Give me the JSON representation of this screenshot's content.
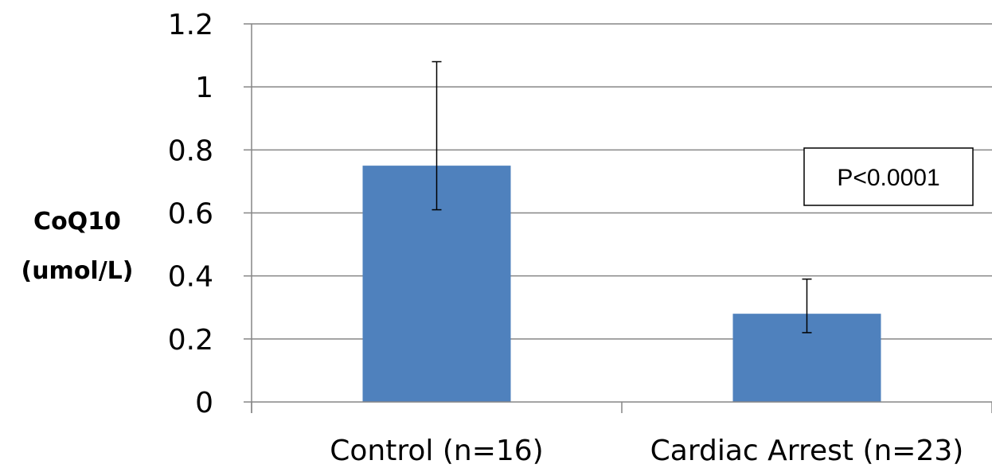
{
  "chart_data": {
    "type": "bar",
    "title": "",
    "xlabel": "",
    "ylabel_lines": [
      "CoQ10",
      "(umol/L)"
    ],
    "categories": [
      "Control (n=16)",
      "Cardiac Arrest (n=23)"
    ],
    "values": [
      0.75,
      0.28
    ],
    "error_bars": [
      {
        "low": 0.61,
        "high": 1.08
      },
      {
        "low": 0.22,
        "high": 0.39
      }
    ],
    "ylim": [
      0,
      1.2
    ],
    "yticks": [
      0,
      0.2,
      0.4,
      0.6,
      0.8,
      1,
      1.2
    ],
    "ytick_labels": [
      "0",
      "0.2",
      "0.4",
      "0.6",
      "0.8",
      "1",
      "1.2"
    ],
    "grid": true,
    "legend": "none",
    "annotation": "P<0.0001",
    "bar_color": "#4f81bd",
    "grid_color": "#868686"
  }
}
